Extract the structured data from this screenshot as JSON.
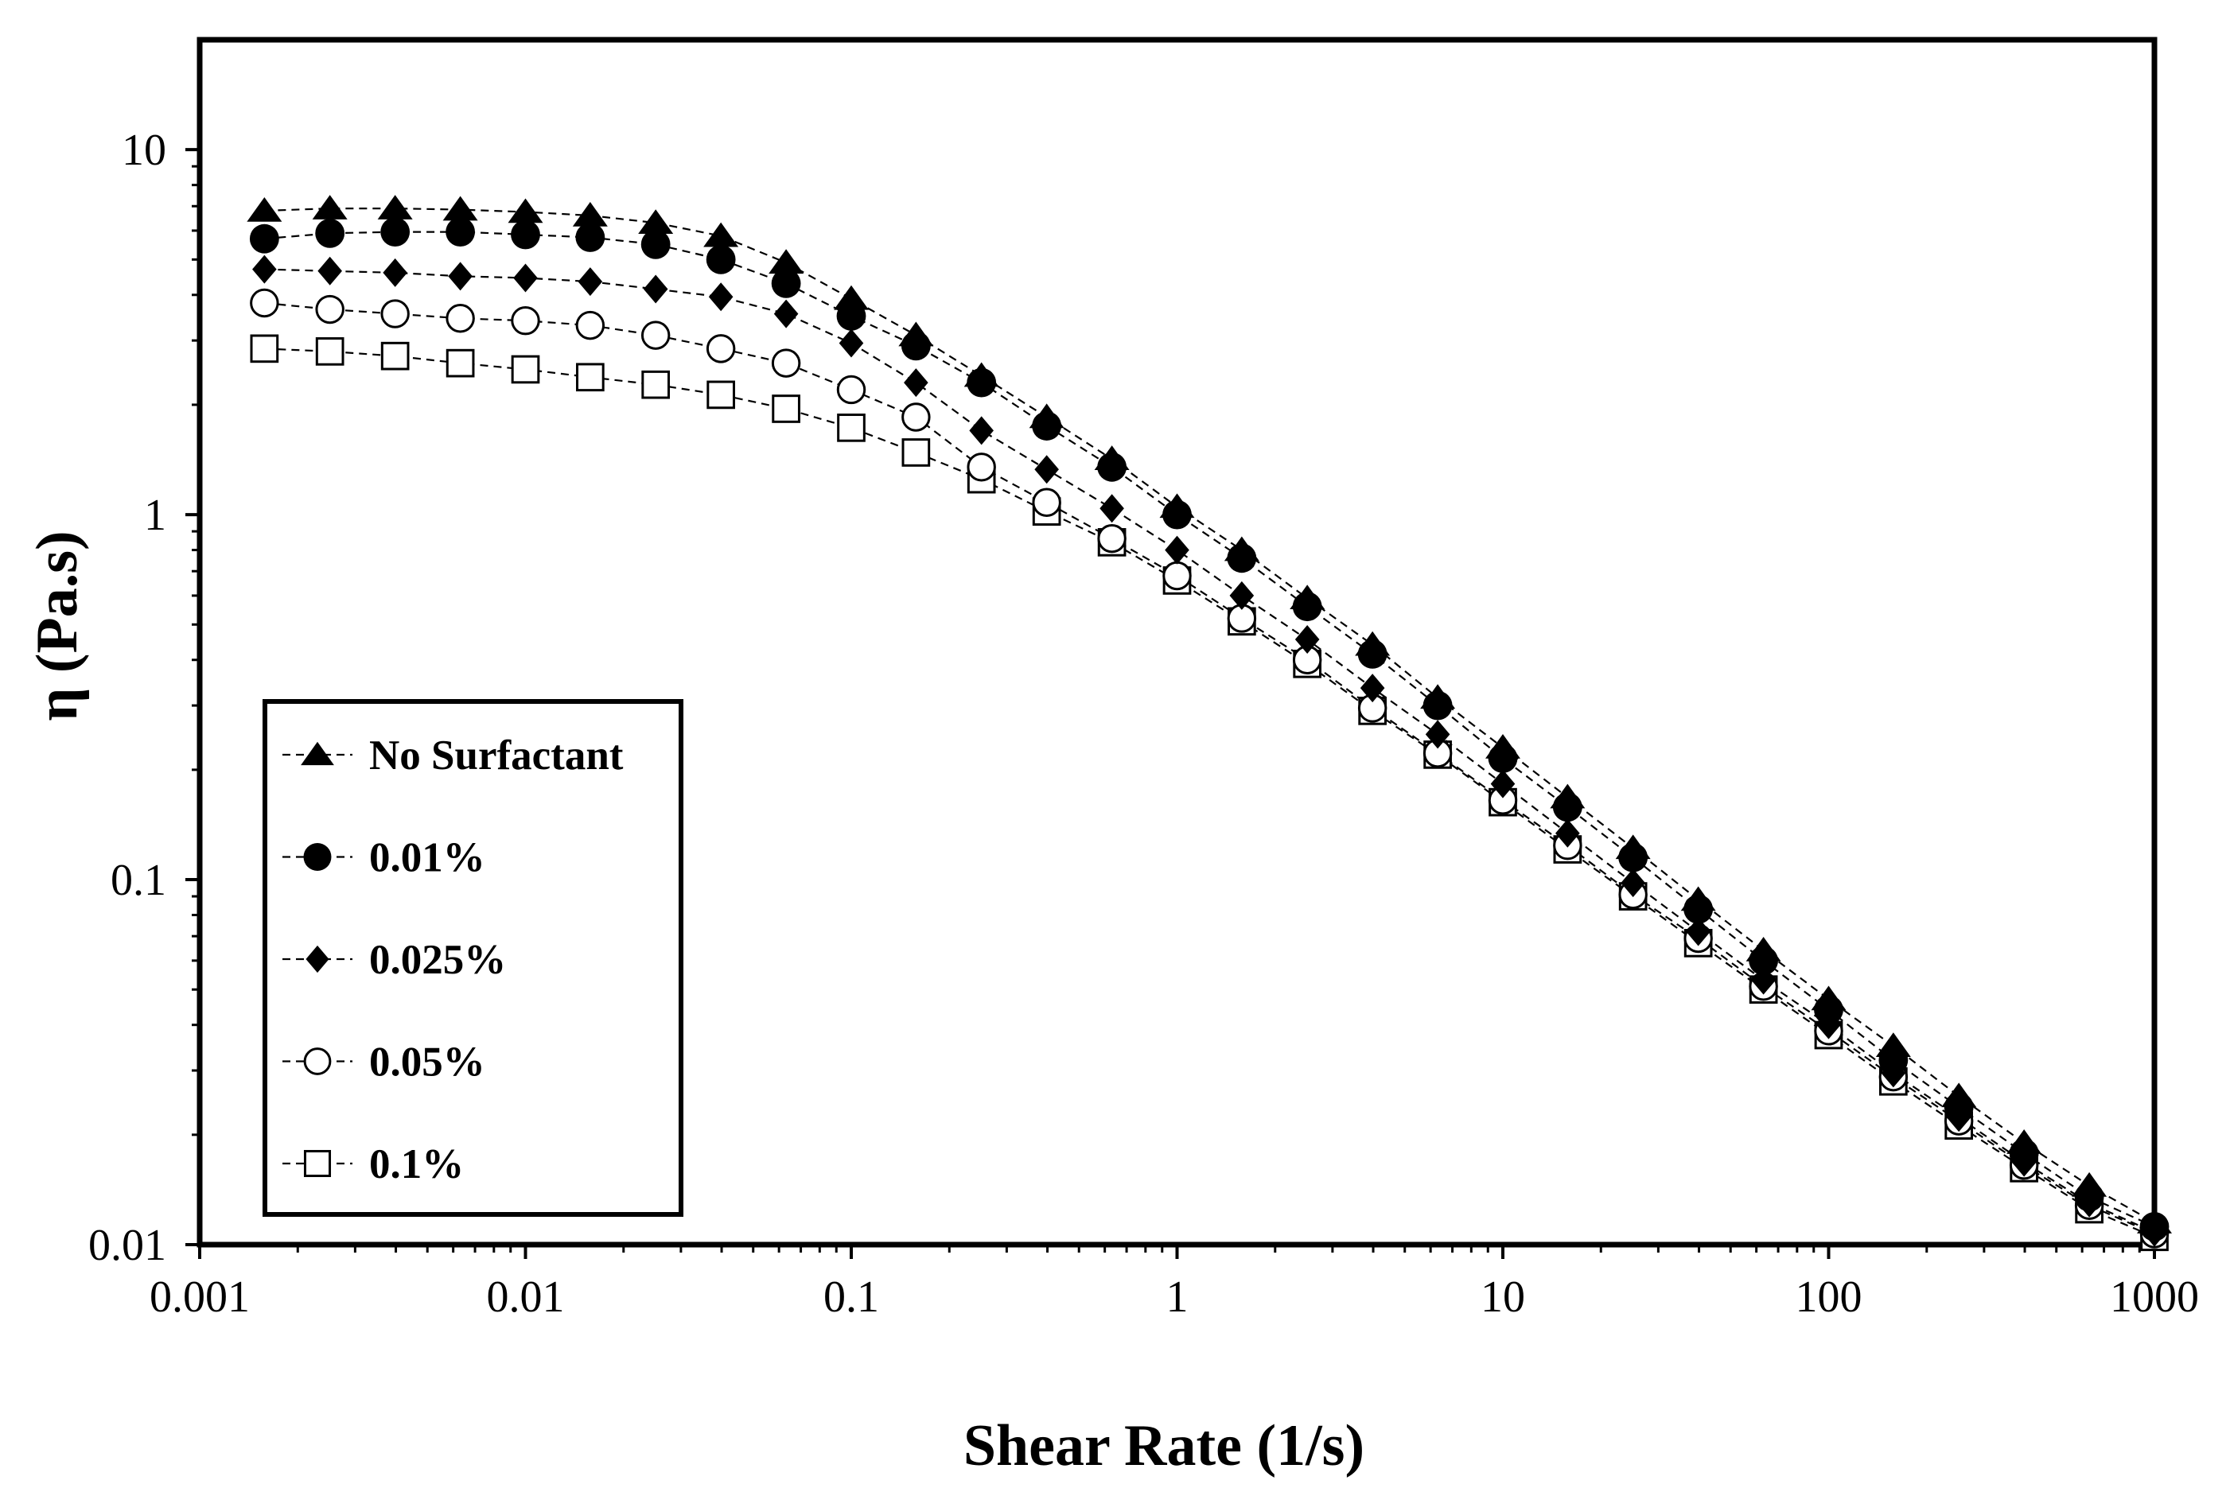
{
  "chart_data": {
    "type": "scatter",
    "title": "",
    "xlabel": "Shear Rate (1/s)",
    "ylabel": "η (Pa.s)",
    "xscale": "log",
    "yscale": "log",
    "xlim": [
      0.001,
      1000
    ],
    "ylim": [
      0.01,
      20
    ],
    "xticks": [
      0.001,
      0.01,
      0.1,
      1,
      10,
      100,
      1000
    ],
    "xtick_labels": [
      "0.001",
      "0.01",
      "0.1",
      "1",
      "10",
      "100",
      "1000"
    ],
    "yticks": [
      0.01,
      0.1,
      1,
      10
    ],
    "ytick_labels": [
      "0.01",
      "0.1",
      "1",
      "10"
    ],
    "grid": false,
    "legend_position": "lower-left",
    "x": [
      0.00158,
      0.00251,
      0.00398,
      0.00631,
      0.01,
      0.0158,
      0.0251,
      0.0398,
      0.0631,
      0.1,
      0.158,
      0.251,
      0.398,
      0.631,
      1,
      1.58,
      2.51,
      3.98,
      6.31,
      10,
      15.8,
      25.1,
      39.8,
      63.1,
      100,
      158,
      251,
      398,
      631,
      1000
    ],
    "series": [
      {
        "name": "No Surfactant",
        "marker": "triangle",
        "values": [
          6.8,
          6.9,
          6.9,
          6.85,
          6.75,
          6.6,
          6.3,
          5.8,
          4.9,
          3.9,
          3.1,
          2.4,
          1.85,
          1.42,
          1.05,
          0.8,
          0.59,
          0.44,
          0.315,
          0.23,
          0.168,
          0.122,
          0.088,
          0.064,
          0.047,
          0.035,
          0.0255,
          0.019,
          0.0145,
          0.0115
        ]
      },
      {
        "name": "0.01%",
        "marker": "circle-filled",
        "values": [
          5.7,
          5.9,
          5.95,
          5.95,
          5.85,
          5.75,
          5.5,
          5.0,
          4.3,
          3.5,
          2.9,
          2.3,
          1.75,
          1.35,
          1.0,
          0.76,
          0.56,
          0.415,
          0.3,
          0.215,
          0.158,
          0.115,
          0.083,
          0.06,
          0.044,
          0.032,
          0.0238,
          0.0178,
          0.0135,
          0.0112
        ]
      },
      {
        "name": "0.025%",
        "marker": "diamond",
        "values": [
          4.7,
          4.65,
          4.6,
          4.5,
          4.45,
          4.35,
          4.15,
          3.95,
          3.55,
          2.95,
          2.3,
          1.7,
          1.33,
          1.04,
          0.8,
          0.6,
          0.455,
          0.335,
          0.25,
          0.183,
          0.134,
          0.098,
          0.072,
          0.053,
          0.04,
          0.0295,
          0.0223,
          0.0168,
          0.013,
          0.0108
        ]
      },
      {
        "name": "0.05%",
        "marker": "circle-open",
        "values": [
          3.8,
          3.65,
          3.55,
          3.45,
          3.4,
          3.3,
          3.1,
          2.85,
          2.6,
          2.2,
          1.85,
          1.35,
          1.08,
          0.86,
          0.68,
          0.52,
          0.4,
          0.295,
          0.222,
          0.165,
          0.124,
          0.091,
          0.069,
          0.051,
          0.0385,
          0.0288,
          0.0218,
          0.0165,
          0.0128,
          0.0107
        ]
      },
      {
        "name": "0.1%",
        "marker": "square-open",
        "values": [
          2.85,
          2.8,
          2.72,
          2.6,
          2.5,
          2.38,
          2.27,
          2.13,
          1.95,
          1.73,
          1.48,
          1.25,
          1.02,
          0.84,
          0.66,
          0.51,
          0.39,
          0.29,
          0.22,
          0.163,
          0.121,
          0.09,
          0.067,
          0.05,
          0.0375,
          0.028,
          0.0212,
          0.0162,
          0.0125,
          0.0105
        ]
      }
    ]
  }
}
